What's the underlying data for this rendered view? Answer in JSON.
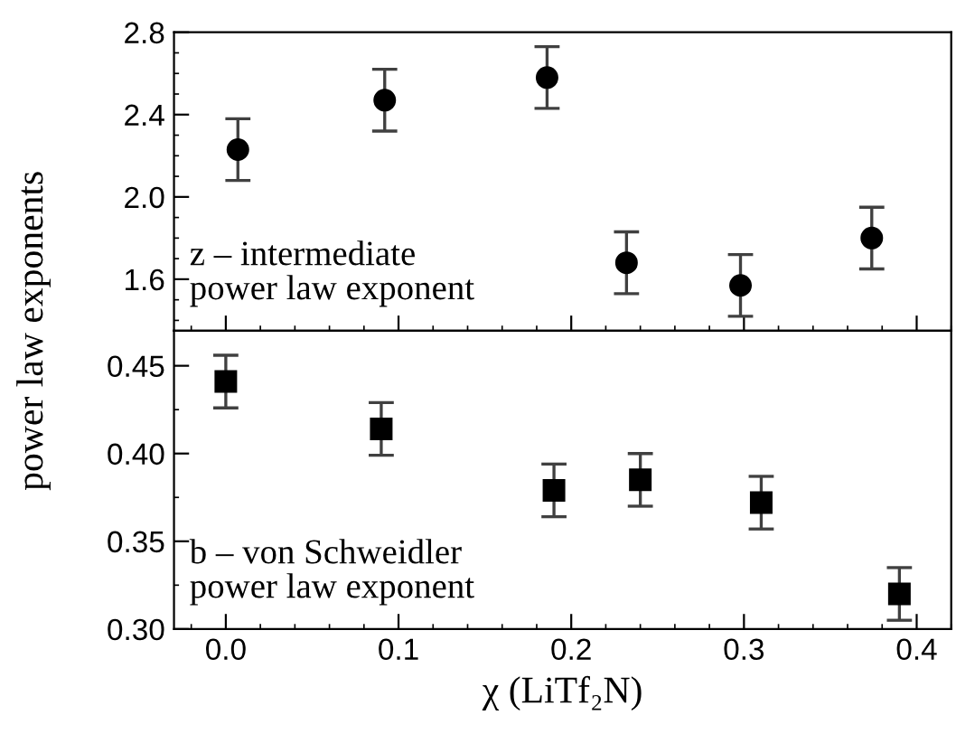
{
  "chart_data": [
    {
      "type": "scatter",
      "ylabel": "power law exponents",
      "xlim": [
        -0.03,
        0.42
      ],
      "xticks": [
        0,
        0.1,
        0.2,
        0.3,
        0.4
      ],
      "ylim": [
        1.35,
        2.8
      ],
      "yticks": [
        1.6,
        {
          "value": 2,
          "label": "2.0"
        },
        2.4,
        2.8
      ],
      "tick_labels": "y",
      "marker": "circle",
      "annotations": [
        "z – intermediate\npower law exponent"
      ],
      "series": [
        {
          "color": "#000000",
          "x": [
            0.007,
            0.092,
            0.186,
            0.232,
            0.298,
            0.374
          ],
          "values": [
            2.23,
            2.47,
            2.58,
            1.68,
            1.57,
            1.8
          ],
          "errors": [
            0.15,
            0.15,
            0.15,
            0.15,
            0.15,
            0.15
          ]
        }
      ]
    },
    {
      "type": "scatter",
      "xlabel": "χ (LiTf₂N)",
      "xlim": [
        -0.03,
        0.42
      ],
      "xticks": [
        {
          "value": 0,
          "label": "0.0"
        },
        0.1,
        0.2,
        0.3,
        0.4
      ],
      "ylim": [
        0.3,
        0.47
      ],
      "yticks": [
        {
          "value": 0.3,
          "label": "0.30"
        },
        0.35,
        {
          "value": 0.4,
          "label": "0.40"
        },
        0.45
      ],
      "marker": "square",
      "annotations": [
        "b – von Schweidler\npower law exponent"
      ],
      "series": [
        {
          "color": "#000000",
          "x": [
            0.0,
            0.09,
            0.19,
            0.24,
            0.31,
            0.39
          ],
          "values": [
            0.441,
            0.414,
            0.379,
            0.385,
            0.372,
            0.32
          ],
          "errors": [
            0.015,
            0.015,
            0.015,
            0.015,
            0.015,
            0.015
          ]
        }
      ]
    }
  ]
}
